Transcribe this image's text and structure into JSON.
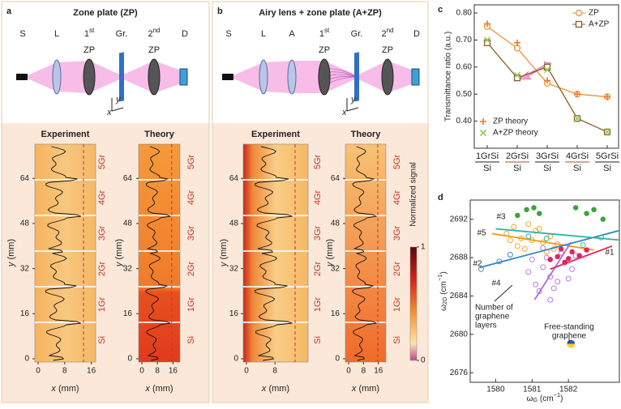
{
  "panels": {
    "a": {
      "letter": "a",
      "title": "Zone plate (ZP)",
      "setup": [
        {
          "text": "S"
        },
        {
          "text": "L"
        },
        {
          "text": "1",
          "sup": "st",
          "below": "ZP"
        },
        {
          "text": "Gr."
        },
        {
          "text": "2",
          "sup": "nd",
          "below": "ZP"
        },
        {
          "text": "D"
        }
      ],
      "axes": [
        "x",
        "y"
      ],
      "experiment": {
        "title": "Experiment",
        "xticks": [
          0,
          8,
          16
        ],
        "yticks": [
          0,
          16,
          32,
          48,
          64
        ]
      },
      "theory": {
        "title": "Theory",
        "xticks": [
          0,
          8,
          16
        ],
        "yticks": [
          0,
          16,
          32,
          48,
          64
        ]
      },
      "xlabel": {
        "var": "x",
        "unit": " (mm)"
      },
      "ylabel": {
        "var": "y",
        "unit": " (mm)"
      },
      "layers": [
        "Si",
        "1Gr",
        "2Gr",
        "3Gr",
        "4Gr",
        "5Gr"
      ]
    },
    "b": {
      "letter": "b",
      "title": "Airy lens + zone plate (A+ZP)",
      "setup": [
        {
          "text": "S"
        },
        {
          "text": "L"
        },
        {
          "text": "A"
        },
        {
          "text": "1",
          "sup": "st",
          "below": "ZP"
        },
        {
          "text": "Gr."
        },
        {
          "text": "2",
          "sup": "nd",
          "below": "ZP"
        },
        {
          "text": "D"
        }
      ],
      "axes": [
        "x",
        "y"
      ],
      "experiment": {
        "title": "Experiment",
        "xticks": [
          0,
          8
        ],
        "yticks": [
          0,
          16,
          32,
          48,
          64
        ]
      },
      "theory": {
        "title": "Theory",
        "xticks": [
          0,
          8,
          16
        ],
        "yticks": [
          0,
          16,
          32,
          48,
          64
        ]
      },
      "xlabel": {
        "var": "x",
        "unit": " (mm)"
      },
      "ylabel": {
        "var": "y",
        "unit": " (mm)"
      },
      "layers": [
        "Si",
        "1Gr",
        "2Gr",
        "3Gr",
        "4Gr",
        "5Gr"
      ],
      "colorbar": {
        "label": "Normalized signal",
        "lim": [
          0,
          1
        ],
        "ticks": [
          1,
          0
        ]
      }
    }
  },
  "chart_data": [
    {
      "type": "line",
      "letter": "c",
      "ylabel": "Transmittance ratio (a.u.)",
      "categories": [
        "1GrSi",
        "2GrSi",
        "3GrSi",
        "4GrSi",
        "5GrSi"
      ],
      "sublabels": [
        "Si",
        "Si",
        "Si",
        "Si",
        "Si"
      ],
      "category_colors": [
        "#222222",
        "#a0522d",
        "#222222",
        "#a0522d",
        "#222222"
      ],
      "ylim": [
        0.3,
        0.83
      ],
      "yticks": [
        {
          "value": 0.4,
          "label": "0.40"
        },
        {
          "value": 0.5,
          "label": "0.50"
        },
        {
          "value": 0.6,
          "label": "0.60"
        },
        {
          "value": 0.7,
          "label": "0.70"
        },
        {
          "value": 0.8,
          "label": "0.80"
        }
      ],
      "series": [
        {
          "name": "ZP",
          "color": "#f0922b",
          "marker": "circle",
          "line": true,
          "legend": "upper right",
          "values": [
            0.75,
            0.67,
            0.54,
            0.5,
            0.49
          ]
        },
        {
          "name": "A+ZP",
          "color": "#8b5a2b",
          "marker": "square",
          "line": true,
          "legend": "upper right",
          "values": [
            0.69,
            0.56,
            0.6,
            0.41,
            0.36
          ]
        },
        {
          "name": "ZP theory",
          "color": "#e8772e",
          "marker": "plus",
          "line": false,
          "legend": "lower left",
          "values": [
            0.76,
            0.69,
            0.55,
            0.5,
            0.49
          ]
        },
        {
          "name": "A+ZP theory",
          "color": "#8fce5a",
          "marker": "cross",
          "line": false,
          "legend": "lower left",
          "values": [
            0.7,
            0.57,
            0.59,
            0.41,
            0.36
          ]
        }
      ]
    },
    {
      "type": "scatter",
      "letter": "d",
      "xlabel": {
        "symbol": "ω",
        "sub": "G",
        "unit": " (cm",
        "sup": "−1",
        "close": ")"
      },
      "ylabel": {
        "symbol": "ω",
        "sub": "2D",
        "unit": " (cm",
        "sup": "−1",
        "close": ")"
      },
      "xlim": [
        1579.3,
        1583.4
      ],
      "ylim": [
        2675,
        2694
      ],
      "xticks": [
        1580,
        1581,
        1582
      ],
      "yticks": [
        2676,
        2680,
        2684,
        2688,
        2692
      ],
      "series": [
        {
          "label": "#5",
          "color": "#f39c12",
          "filled": false,
          "x": [
            1580.3,
            1580.5,
            1580.7,
            1580.9,
            1581.1,
            1581.3,
            1581.5,
            1580.6,
            1580.8,
            1581.0,
            1581.2,
            1581.4,
            1581.7,
            1580.4,
            1580.9,
            1581.6
          ],
          "y": [
            2690.5,
            2691.2,
            2690.0,
            2691.5,
            2690.8,
            2689.6,
            2690.2,
            2689.2,
            2688.9,
            2689.8,
            2691.0,
            2688.6,
            2689.4,
            2689.8,
            2690.2,
            2688.9
          ],
          "fit": {
            "x": [
              1579.9,
              1582.7
            ],
            "y": [
              2690.5,
              2688.8
            ]
          }
        },
        {
          "label": "#4",
          "color": "#b36ae2",
          "filled": false,
          "x": [
            1580.9,
            1581.1,
            1581.3,
            1581.5,
            1581.7,
            1581.9,
            1582.1,
            1581.2,
            1581.4,
            1581.6,
            1581.8,
            1582.0,
            1581.0,
            1581.5,
            1582.2,
            1581.3
          ],
          "y": [
            2686.5,
            2685.2,
            2687.0,
            2686.0,
            2685.5,
            2687.5,
            2686.8,
            2684.5,
            2688.0,
            2684.8,
            2688.5,
            2685.8,
            2687.8,
            2683.6,
            2688.2,
            2689.0
          ],
          "fit": {
            "x": [
              1581.07,
              1582.07
            ],
            "y": [
              2683.6,
              2689.6
            ]
          }
        },
        {
          "label": "#1",
          "color": "#e0245e",
          "filled": true,
          "x": [
            1581.5,
            1581.7,
            1581.9,
            1582.1,
            1582.3,
            1582.5,
            1581.8,
            1582.0
          ],
          "y": [
            2687.8,
            2688.1,
            2687.5,
            2688.6,
            2688.2,
            2688.8,
            2688.9,
            2687.9
          ],
          "fit": {
            "x": [
              1581.5,
              1583.2
            ],
            "y": [
              2686.8,
              2689.2
            ]
          }
        },
        {
          "label": "#2",
          "color": "#2f86c8",
          "filled": false,
          "x": [
            1579.6,
            1580.1,
            1580.4
          ],
          "y": [
            2686.8,
            2687.6,
            2688.3
          ],
          "fit": {
            "x": [
              1579.56,
              1583.38
            ],
            "y": [
              2686.96,
              2690.8
            ]
          }
        },
        {
          "label": "#3",
          "color": "#2bb3a3",
          "filled": false,
          "x": [
            1580.9,
            1581.4,
            1582.4,
            1582.9
          ],
          "y": [
            2690.2,
            2690.0,
            2689.3,
            2690.1
          ],
          "fit": {
            "x": [
              1580.0,
              1583.38
            ],
            "y": [
              2691.0,
              2689.84
            ]
          }
        },
        {
          "color": "#3aa53a",
          "filled": true,
          "x": [
            1580.6,
            1580.85,
            1581.05,
            1581.2,
            1582.2,
            1582.5,
            1582.95,
            1582.7
          ],
          "y": [
            2692.4,
            2693.0,
            2693.2,
            2692.6,
            2693.2,
            2692.6,
            2692.0,
            2693.0
          ]
        },
        {
          "colors": [
            "#2a56c6",
            "#f5d31a"
          ],
          "halves": true,
          "x": [
            1582.07
          ],
          "y": [
            2679.0
          ]
        }
      ],
      "annotations": [
        {
          "lines": [
            "Number of",
            "graphene",
            "layers"
          ]
        },
        {
          "lines": [
            "Free-standing",
            "graphene"
          ]
        }
      ]
    }
  ]
}
